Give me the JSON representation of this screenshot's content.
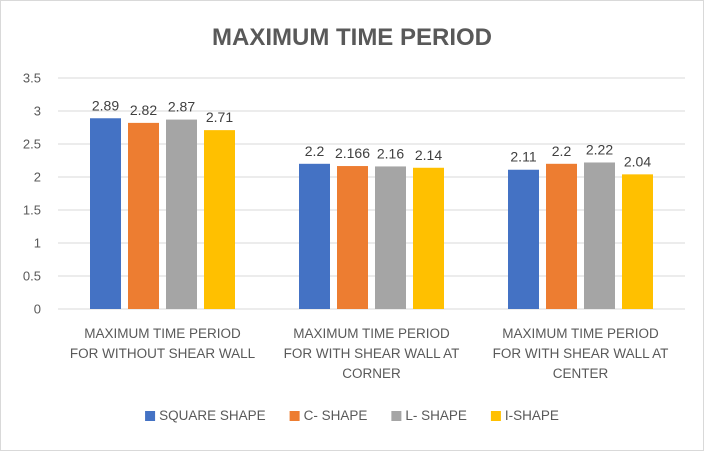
{
  "chart_data": {
    "type": "bar",
    "title": "MAXIMUM TIME PERIOD",
    "xlabel": "",
    "ylabel": "",
    "ylim": [
      0,
      3.5
    ],
    "yticks": [
      "0",
      "0.5",
      "1",
      "1.5",
      "2",
      "2.5",
      "3",
      "3.5"
    ],
    "grid": true,
    "legend_position": "bottom",
    "categories": [
      [
        "MAXIMUM TIME PERIOD",
        "FOR WITHOUT SHEAR WALL"
      ],
      [
        "MAXIMUM TIME PERIOD",
        "FOR WITH SHEAR WALL AT",
        "CORNER"
      ],
      [
        "MAXIMUM TIME PERIOD",
        "FOR WITH SHEAR WALL AT",
        "CENTER"
      ]
    ],
    "series": [
      {
        "name": "SQUARE SHAPE",
        "color": "#4472c4",
        "values": [
          2.89,
          2.2,
          2.11
        ],
        "labels": [
          "2.89",
          "2.2",
          "2.11"
        ]
      },
      {
        "name": "C- SHAPE",
        "color": "#ed7d31",
        "values": [
          2.82,
          2.166,
          2.2
        ],
        "labels": [
          "2.82",
          "2.166",
          "2.2"
        ]
      },
      {
        "name": "L- SHAPE",
        "color": "#a5a5a5",
        "values": [
          2.87,
          2.16,
          2.22
        ],
        "labels": [
          "2.87",
          "2.16",
          "2.22"
        ]
      },
      {
        "name": "I-SHAPE",
        "color": "#ffc000",
        "values": [
          2.71,
          2.14,
          2.04
        ],
        "labels": [
          "2.71",
          "2.14",
          "2.04"
        ]
      }
    ]
  }
}
